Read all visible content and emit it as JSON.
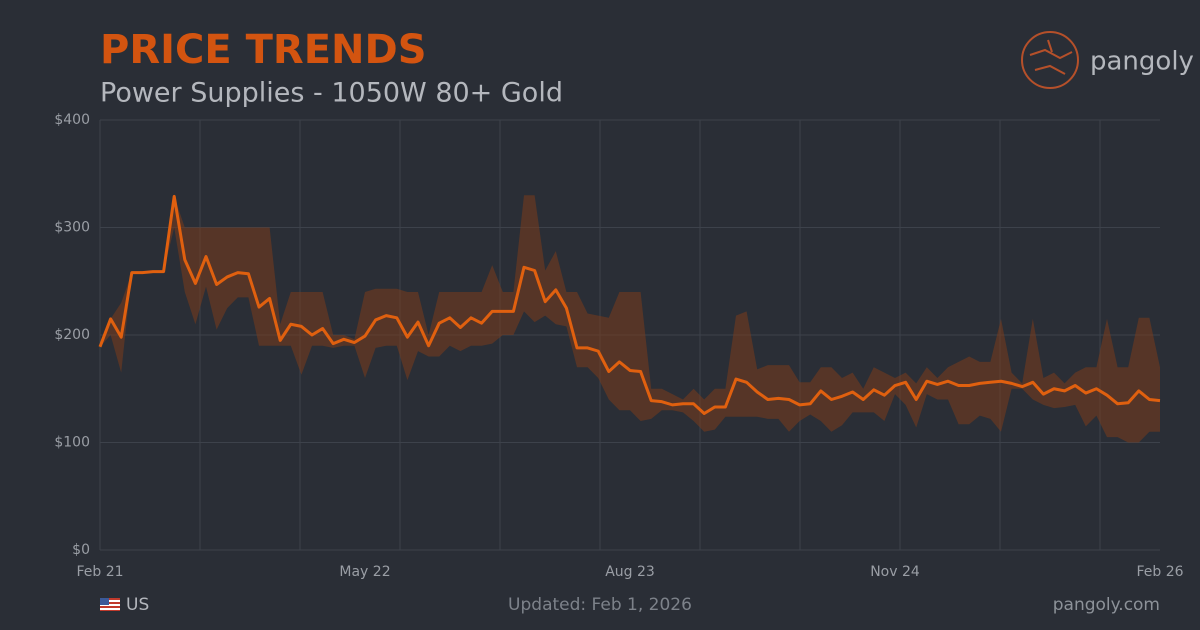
{
  "chart_data": {
    "type": "line",
    "title": "PRICE TRENDS",
    "subtitle": "Power Supplies - 1050W 80+ Gold",
    "categories": [
      "Feb 21",
      null,
      null,
      null,
      null,
      null,
      null,
      null,
      null,
      null,
      null,
      null,
      null,
      null,
      null,
      null,
      null,
      null,
      null,
      null,
      null,
      null,
      null,
      null,
      null,
      "May 22",
      null,
      null,
      null,
      null,
      null,
      null,
      null,
      null,
      null,
      null,
      null,
      null,
      null,
      null,
      null,
      null,
      null,
      null,
      null,
      null,
      null,
      null,
      null,
      null,
      "Aug 23",
      null,
      null,
      null,
      null,
      null,
      null,
      null,
      null,
      null,
      null,
      null,
      null,
      null,
      null,
      null,
      null,
      null,
      null,
      null,
      null,
      null,
      null,
      null,
      null,
      "Nov 24",
      null,
      null,
      null,
      null,
      null,
      null,
      null,
      null,
      null,
      null,
      null,
      null,
      null,
      null,
      null,
      null,
      null,
      null,
      null,
      null,
      null,
      null,
      null,
      null,
      "Feb 26"
    ],
    "values": [
      189,
      215,
      198,
      258,
      258,
      259,
      259,
      329,
      270,
      248,
      273,
      247,
      254,
      258,
      257,
      226,
      234,
      195,
      210,
      208,
      200,
      206,
      192,
      196,
      193,
      199,
      214,
      218,
      216,
      198,
      212,
      190,
      211,
      216,
      207,
      216,
      211,
      222,
      222,
      222,
      263,
      260,
      231,
      242,
      225,
      188,
      188,
      185,
      166,
      175,
      167,
      166,
      139,
      138,
      135,
      136,
      136,
      127,
      133,
      133,
      159,
      156,
      147,
      140,
      141,
      140,
      135,
      136,
      148,
      140,
      143,
      147,
      140,
      149,
      144,
      153,
      156,
      140,
      157,
      154,
      157,
      153,
      153,
      155,
      156,
      157,
      155,
      152,
      156,
      145,
      150,
      148,
      153,
      146,
      150,
      144,
      136,
      137,
      148,
      140,
      139
    ],
    "color": "#e0600f",
    "band": {
      "color": "#7a3d1c",
      "high": [
        189,
        215,
        230,
        258,
        258,
        259,
        259,
        329,
        300,
        300,
        300,
        300,
        300,
        300,
        300,
        300,
        300,
        210,
        240,
        240,
        240,
        240,
        200,
        200,
        196,
        240,
        243,
        243,
        243,
        240,
        240,
        200,
        240,
        240,
        240,
        240,
        240,
        265,
        240,
        240,
        330,
        330,
        260,
        278,
        240,
        240,
        220,
        218,
        216,
        240,
        240,
        240,
        150,
        150,
        145,
        140,
        150,
        140,
        150,
        150,
        218,
        222,
        168,
        172,
        172,
        172,
        156,
        156,
        170,
        170,
        160,
        165,
        150,
        170,
        165,
        160,
        165,
        155,
        170,
        160,
        170,
        175,
        180,
        175,
        175,
        215,
        165,
        155,
        215,
        160,
        165,
        155,
        165,
        170,
        170,
        215,
        170,
        170,
        216,
        216,
        170
      ],
      "low": [
        189,
        200,
        165,
        258,
        258,
        259,
        259,
        300,
        240,
        210,
        245,
        205,
        225,
        235,
        235,
        190,
        190,
        190,
        190,
        163,
        190,
        190,
        188,
        190,
        190,
        160,
        188,
        190,
        190,
        158,
        185,
        180,
        180,
        190,
        185,
        190,
        190,
        192,
        200,
        200,
        222,
        212,
        218,
        210,
        208,
        170,
        170,
        160,
        140,
        130,
        130,
        120,
        122,
        130,
        130,
        128,
        120,
        110,
        112,
        124,
        124,
        124,
        124,
        122,
        122,
        110,
        120,
        126,
        120,
        110,
        116,
        128,
        128,
        128,
        120,
        145,
        135,
        114,
        145,
        140,
        140,
        117,
        117,
        125,
        122,
        110,
        150,
        150,
        140,
        135,
        132,
        133,
        135,
        115,
        125,
        105,
        105,
        100,
        100,
        110,
        110
      ]
    },
    "ylim": [
      0,
      400
    ],
    "yticks": [
      {
        "value": 0,
        "label": "$0"
      },
      {
        "value": 100,
        "label": "$100"
      },
      {
        "value": 200,
        "label": "$200"
      },
      {
        "value": 300,
        "label": "$300"
      },
      {
        "value": 400,
        "label": "$400"
      }
    ],
    "grid": true
  },
  "logo": {
    "text": "pangoly"
  },
  "footer": {
    "region": "US",
    "updated": "Updated: Feb 1, 2026",
    "site": "pangoly.com"
  }
}
